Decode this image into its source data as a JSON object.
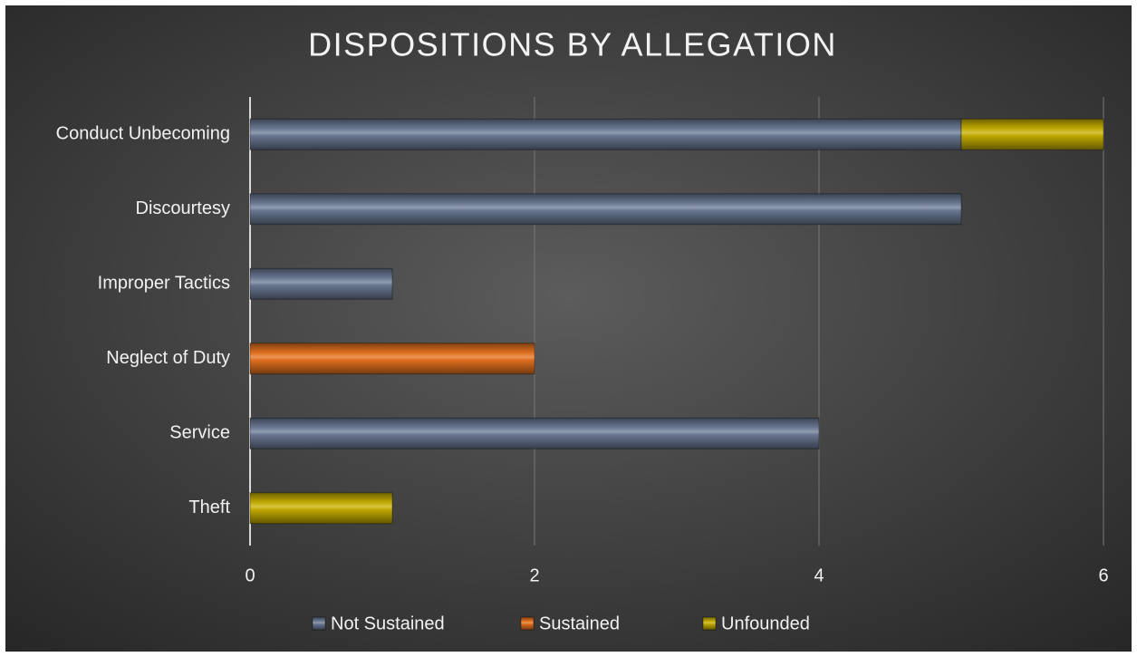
{
  "chart_data": {
    "type": "stacked_barh",
    "title": "DISPOSITIONS BY ALLEGATION",
    "categories": [
      "Conduct Unbecoming",
      "Discourtesy",
      "Improper Tactics",
      "Neglect of Duty",
      "Service",
      "Theft"
    ],
    "series": [
      {
        "name": "Not Sustained",
        "color": "#6c7b96",
        "values": [
          5,
          5,
          1,
          0,
          4,
          0
        ]
      },
      {
        "name": "Sustained",
        "color": "#e8731f",
        "values": [
          0,
          0,
          0,
          2,
          0,
          0
        ]
      },
      {
        "name": "Unfounded",
        "color": "#c8b000",
        "values": [
          1,
          0,
          0,
          0,
          0,
          1
        ]
      }
    ],
    "xlim": [
      0,
      6
    ],
    "xticks": [
      0,
      2,
      4,
      6
    ],
    "grid": true,
    "legend": "bottom"
  }
}
